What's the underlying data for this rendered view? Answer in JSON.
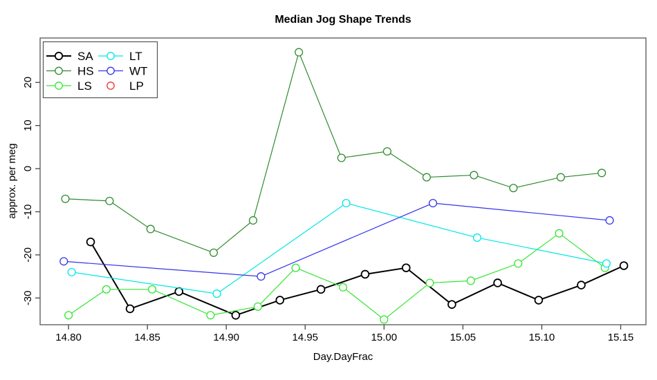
{
  "title": "Median Jog Shape Trends",
  "axes": {
    "xlabel": "Day.DayFrac",
    "ylabel": "approx. per meg",
    "x_ticks": [
      {
        "label": "14.80",
        "value": 14.8
      },
      {
        "label": "14.85",
        "value": 14.85
      },
      {
        "label": "14.90",
        "value": 14.9
      },
      {
        "label": "14.95",
        "value": 14.95
      },
      {
        "label": "15.00",
        "value": 15.0
      },
      {
        "label": "15.05",
        "value": 15.05
      },
      {
        "label": "15.10",
        "value": 15.1
      },
      {
        "label": "15.15",
        "value": 15.15
      }
    ],
    "y_ticks": [
      {
        "label": "20",
        "value": 20
      },
      {
        "label": "10",
        "value": 10
      },
      {
        "label": "0",
        "value": 0
      },
      {
        "label": "-10",
        "value": -10
      },
      {
        "label": "-20",
        "value": -20
      },
      {
        "label": "-30",
        "value": -30
      }
    ]
  },
  "chart_data": {
    "type": "line",
    "title": "Median Jog Shape Trends",
    "xlabel": "Day.DayFrac",
    "ylabel": "approx. per meg",
    "xlim": [
      14.782,
      15.166
    ],
    "ylim": [
      -36.2,
      30.3
    ],
    "grid": false,
    "legend_position": "top-left",
    "marker": "open-circle",
    "series": [
      {
        "name": "SA",
        "color": "#000000",
        "line_width": 2,
        "has_line": true,
        "x": [
          14.814,
          14.839,
          14.87,
          14.906,
          14.934,
          14.96,
          14.988,
          15.014,
          15.043,
          15.072,
          15.098,
          15.125,
          15.152
        ],
        "y": [
          -17,
          -32.5,
          -28.5,
          -34,
          -30.5,
          -28,
          -24.5,
          -23,
          -31.5,
          -26.5,
          -30.5,
          -27,
          -22.5
        ]
      },
      {
        "name": "HS",
        "color": "#2E8B2E",
        "line_width": 1.2,
        "has_line": true,
        "x": [
          14.798,
          14.826,
          14.852,
          14.892,
          14.917,
          14.946,
          14.973,
          15.002,
          15.027,
          15.057,
          15.082,
          15.112,
          15.138
        ],
        "y": [
          -7,
          -7.5,
          -14,
          -19.5,
          -12,
          27,
          2.5,
          4,
          -2,
          -1.5,
          -4.5,
          -2,
          -1
        ]
      },
      {
        "name": "LS",
        "color": "#33E633",
        "line_width": 1.2,
        "has_line": true,
        "x": [
          14.8,
          14.824,
          14.853,
          14.89,
          14.92,
          14.944,
          14.974,
          15.0,
          15.029,
          15.055,
          15.085,
          15.111,
          15.14
        ],
        "y": [
          -34,
          -28,
          -28,
          -34,
          -32,
          -23,
          -27.5,
          -35,
          -26.5,
          -26,
          -22,
          -15,
          -23
        ]
      },
      {
        "name": "LT",
        "color": "#00E6E6",
        "line_width": 1.2,
        "has_line": true,
        "x": [
          14.802,
          14.894,
          14.976,
          15.059,
          15.141
        ],
        "y": [
          -24,
          -29,
          -8,
          -16,
          -22
        ]
      },
      {
        "name": "WT",
        "color": "#3333EE",
        "line_width": 1.2,
        "has_line": true,
        "x": [
          14.797,
          14.922,
          15.031,
          15.143
        ],
        "y": [
          -21.5,
          -25,
          -8,
          -12
        ]
      },
      {
        "name": "LP",
        "color": "#EE3333",
        "line_width": 1.2,
        "has_line": false,
        "x": [],
        "y": []
      }
    ]
  },
  "colors": {
    "axis": "#444444",
    "box": "#555555",
    "text": "#000000",
    "background": "#ffffff"
  }
}
